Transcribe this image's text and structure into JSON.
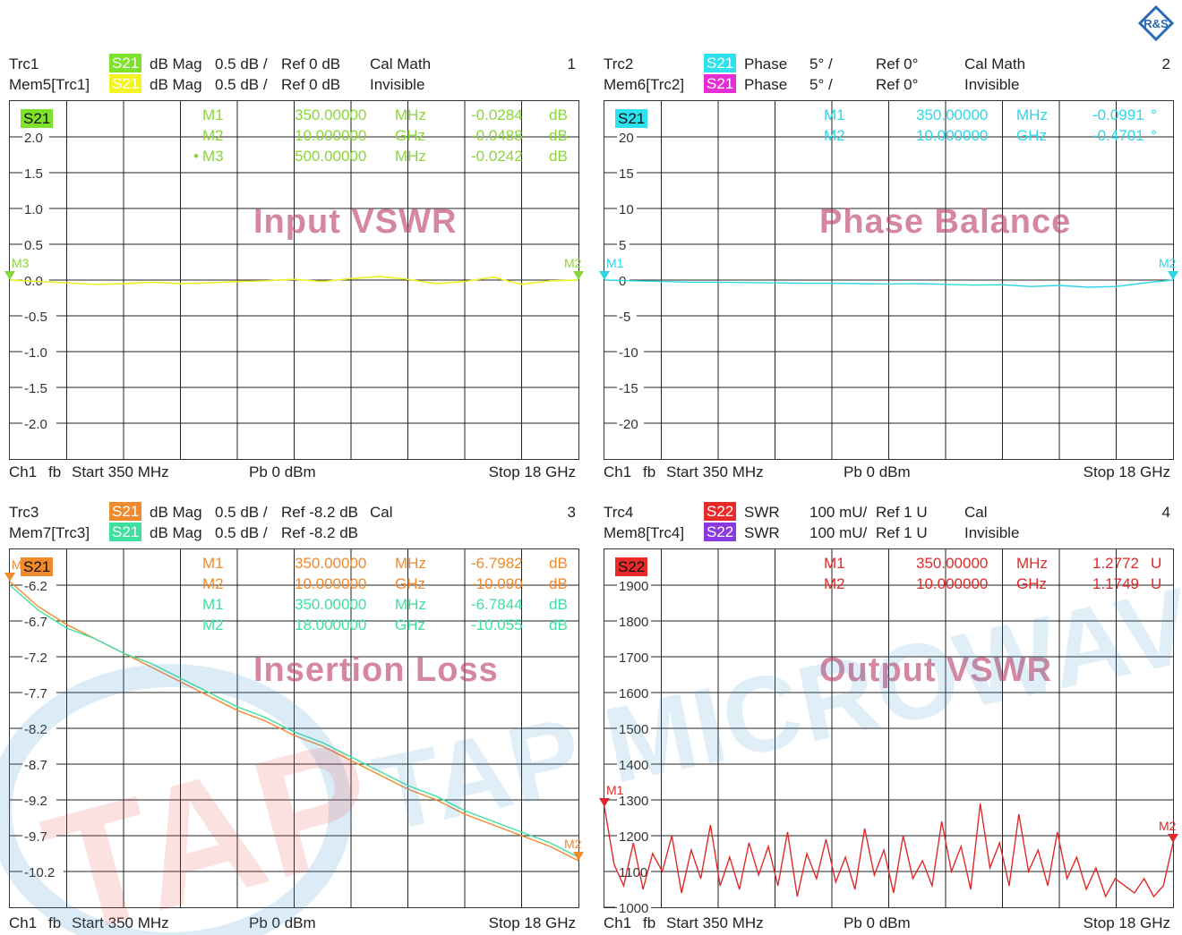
{
  "logo": "R&S",
  "watermark": {
    "brand": "TAP",
    "text": "TAP MICROWAVE"
  },
  "panels": [
    {
      "id": "1",
      "number": "1",
      "trace_name": "Trc1",
      "trace_badge": "S21",
      "trace_badge_color": "#7ee12a",
      "trace_format": "dB Mag",
      "trace_scale": "0.5 dB /",
      "trace_ref": "Ref 0 dB",
      "trace_status": "Cal Math",
      "mem_name": "Mem5[Trc1]",
      "mem_badge": "S21",
      "mem_badge_color": "#f3f31f",
      "mem_format": "dB Mag",
      "mem_scale": "0.5 dB /",
      "mem_ref": "Ref 0 dB",
      "mem_status": "Invisible",
      "plot_badge": "S21",
      "overlay_title": "Input VSWR",
      "y_ticks": [
        "2.0",
        "1.5",
        "1.0",
        "0.5",
        "0.0",
        "-0.5",
        "-1.0",
        "-1.5",
        "-2.0"
      ],
      "y_range": [
        -2.5,
        2.5
      ],
      "markers": [
        {
          "name": "M1",
          "freq": "350.00000",
          "unit": "MHz",
          "value": "-0.0284",
          "vunit": "dB",
          "color": "#8ad63a",
          "active": false
        },
        {
          "name": "M2",
          "freq": "10.000000",
          "unit": "GHz",
          "value": "-0.0488",
          "vunit": "dB",
          "color": "#8ad63a",
          "active": false
        },
        {
          "name": "M3",
          "freq": "500.00000",
          "unit": "MHz",
          "value": "-0.0242",
          "vunit": "dB",
          "color": "#8ad63a",
          "active": true
        }
      ],
      "trace_markers": [
        "M3",
        "M2"
      ],
      "footer": {
        "channel": "Ch1",
        "mode": "fb",
        "start": "Start  350 MHz",
        "power": "Pb   0 dBm",
        "stop": "Stop  18 GHz"
      },
      "chart_data": {
        "type": "line",
        "x_range": [
          "350 MHz",
          "18 GHz"
        ],
        "ylim": [
          -2.5,
          2.5
        ],
        "series": [
          {
            "name": "S21",
            "color": "#8ad63a",
            "values": [
              0.0,
              -0.02,
              -0.04,
              -0.06,
              -0.05,
              -0.03,
              -0.05,
              -0.04,
              -0.02,
              -0.01,
              0.01,
              -0.02,
              0.02,
              0.05,
              0.01,
              -0.05,
              -0.02,
              0.04,
              -0.06,
              -0.01,
              0.0
            ]
          },
          {
            "name": "S21",
            "color": "#f3f31f",
            "values": [
              0.0,
              -0.02,
              -0.04,
              -0.06,
              -0.05,
              -0.03,
              -0.05,
              -0.04,
              -0.02,
              -0.01,
              0.01,
              -0.02,
              0.02,
              0.05,
              0.01,
              -0.05,
              -0.02,
              0.04,
              -0.06,
              -0.01,
              0.0
            ]
          }
        ]
      }
    },
    {
      "id": "2",
      "number": "2",
      "trace_name": "Trc2",
      "trace_badge": "S21",
      "trace_badge_color": "#2ee1ee",
      "trace_format": "Phase",
      "trace_scale": "5° /",
      "trace_ref": "Ref 0°",
      "trace_status": "Cal Math",
      "mem_name": "Mem6[Trc2]",
      "mem_badge": "S21",
      "mem_badge_color": "#e62ed6",
      "mem_format": "Phase",
      "mem_scale": "5° /",
      "mem_ref": "Ref 0°",
      "mem_status": "Invisible",
      "plot_badge": "S21",
      "overlay_title": "Phase Balance",
      "y_ticks": [
        "20",
        "15",
        "10",
        "5",
        "0",
        "-5",
        "-10",
        "-15",
        "-20"
      ],
      "y_range": [
        -25,
        25
      ],
      "markers": [
        {
          "name": "M1",
          "freq": "350.00000",
          "unit": "MHz",
          "value": "-0.0991",
          "vunit": "°",
          "color": "#2ed6e6",
          "active": false
        },
        {
          "name": "M2",
          "freq": "10.000000",
          "unit": "GHz",
          "value": "-0.4701",
          "vunit": "°",
          "color": "#2ed6e6",
          "active": false
        }
      ],
      "trace_markers": [
        "M1",
        "M2"
      ],
      "footer": {
        "channel": "Ch1",
        "mode": "fb",
        "start": "Start  350 MHz",
        "power": "Pb   0 dBm",
        "stop": "Stop  18 GHz"
      },
      "chart_data": {
        "type": "line",
        "x_range": [
          "350 MHz",
          "18 GHz"
        ],
        "ylim": [
          -25,
          25
        ],
        "series": [
          {
            "name": "S21",
            "color": "#2ed6e6",
            "values": [
              0.0,
              -0.1,
              -0.2,
              -0.3,
              -0.3,
              -0.35,
              -0.4,
              -0.45,
              -0.45,
              -0.5,
              -0.55,
              -0.5,
              -0.6,
              -0.7,
              -0.65,
              -0.9,
              -0.75,
              -1.0,
              -0.9,
              -0.4,
              0.0
            ]
          }
        ]
      }
    },
    {
      "id": "3",
      "number": "3",
      "trace_name": "Trc3",
      "trace_badge": "S21",
      "trace_badge_color": "#f08a2c",
      "trace_format": "dB Mag",
      "trace_scale": "0.5 dB /",
      "trace_ref": "Ref -8.2 dB",
      "trace_status": "Cal",
      "mem_name": "Mem7[Trc3]",
      "mem_badge": "S21",
      "mem_badge_color": "#3ee0a0",
      "mem_format": "dB Mag",
      "mem_scale": "0.5 dB /",
      "mem_ref": "Ref -8.2 dB",
      "mem_status": "",
      "plot_badge": "S21",
      "overlay_title": "Insertion Loss",
      "y_ticks": [
        "-6.2",
        "-6.7",
        "-7.2",
        "-7.7",
        "-8.2",
        "-8.7",
        "-9.2",
        "-9.7",
        "-10.2"
      ],
      "y_range": [
        -10.7,
        -5.7
      ],
      "markers": [
        {
          "name": "M1",
          "freq": "350.00000",
          "unit": "MHz",
          "value": "-6.7982",
          "vunit": "dB",
          "color": "#f08a2c",
          "active": false
        },
        {
          "name": "M2",
          "freq": "10.000000",
          "unit": "GHz",
          "value": "-10.090",
          "vunit": "dB",
          "color": "#f08a2c",
          "active": false
        },
        {
          "name": "M1",
          "freq": "350.00000",
          "unit": "MHz",
          "value": "-6.7844",
          "vunit": "dB",
          "color": "#3ee0a0",
          "active": false
        },
        {
          "name": "M2",
          "freq": "18.000000",
          "unit": "GHz",
          "value": "-10.055",
          "vunit": "dB",
          "color": "#3ee0a0",
          "active": false
        }
      ],
      "trace_markers": [
        "M1",
        "M2"
      ],
      "footer": {
        "channel": "Ch1",
        "mode": "fb",
        "start": "Start  350 MHz",
        "power": "Pb   0 dBm",
        "stop": "Stop  18 GHz"
      },
      "chart_data": {
        "type": "line",
        "x_range": [
          "350 MHz",
          "18 GHz"
        ],
        "ylim": [
          -10.7,
          -5.7
        ],
        "series": [
          {
            "name": "S21",
            "color": "#f08a2c",
            "values": [
              -6.15,
              -6.5,
              -6.75,
              -6.95,
              -7.15,
              -7.35,
              -7.55,
              -7.75,
              -7.95,
              -8.1,
              -8.3,
              -8.45,
              -8.65,
              -8.85,
              -9.05,
              -9.2,
              -9.4,
              -9.55,
              -9.7,
              -9.85,
              -10.05
            ]
          },
          {
            "name": "S21",
            "color": "#3ee0a0",
            "values": [
              -6.2,
              -6.55,
              -6.8,
              -6.95,
              -7.15,
              -7.3,
              -7.5,
              -7.7,
              -7.9,
              -8.05,
              -8.25,
              -8.4,
              -8.6,
              -8.8,
              -9.0,
              -9.15,
              -9.35,
              -9.5,
              -9.65,
              -9.8,
              -10.0
            ]
          }
        ]
      }
    },
    {
      "id": "4",
      "number": "4",
      "trace_name": "Trc4",
      "trace_badge": "S22",
      "trace_badge_color": "#e82a2a",
      "trace_format": "SWR",
      "trace_scale": "100 mU/",
      "trace_ref": "Ref 1 U",
      "trace_status": "Cal",
      "mem_name": "Mem8[Trc4]",
      "mem_badge": "S22",
      "mem_badge_color": "#8a3ae0",
      "mem_format": "SWR",
      "mem_scale": "100 mU/",
      "mem_ref": "Ref 1 U",
      "mem_status": "Invisible",
      "plot_badge": "S22",
      "overlay_title": "Output VSWR",
      "y_ticks": [
        "1900",
        "1800",
        "1700",
        "1600",
        "1500",
        "1400",
        "1300",
        "1200",
        "1100",
        "1000"
      ],
      "y_range": [
        1000,
        2000
      ],
      "markers": [
        {
          "name": "M1",
          "freq": "350.00000",
          "unit": "MHz",
          "value": "1.2772",
          "vunit": "U",
          "color": "#e02a2a",
          "active": false
        },
        {
          "name": "M2",
          "freq": "10.000000",
          "unit": "GHz",
          "value": "1.1749",
          "vunit": "U",
          "color": "#e02a2a",
          "active": false
        }
      ],
      "trace_markers": [
        "M1",
        "M2"
      ],
      "footer": {
        "channel": "Ch1",
        "mode": "fb",
        "start": "Start  350 MHz",
        "power": "Pb   0 dBm",
        "stop": "Stop  18 GHz"
      },
      "chart_data": {
        "type": "line",
        "x_range": [
          "350 MHz",
          "18 GHz"
        ],
        "ylim": [
          1000,
          2000
        ],
        "series": [
          {
            "name": "S22",
            "color": "#e02a2a",
            "values": [
              1280,
              1120,
              1060,
              1180,
              1050,
              1150,
              1100,
              1200,
              1040,
              1160,
              1080,
              1230,
              1060,
              1140,
              1050,
              1180,
              1090,
              1170,
              1060,
              1210,
              1030,
              1150,
              1080,
              1190,
              1070,
              1140,
              1050,
              1220,
              1090,
              1160,
              1040,
              1200,
              1080,
              1130,
              1060,
              1240,
              1100,
              1170,
              1050,
              1290,
              1110,
              1180,
              1060,
              1260,
              1100,
              1160,
              1060,
              1210,
              1080,
              1140,
              1050,
              1110,
              1030,
              1080,
              1060,
              1040,
              1080,
              1030,
              1060,
              1180
            ]
          }
        ]
      }
    }
  ]
}
